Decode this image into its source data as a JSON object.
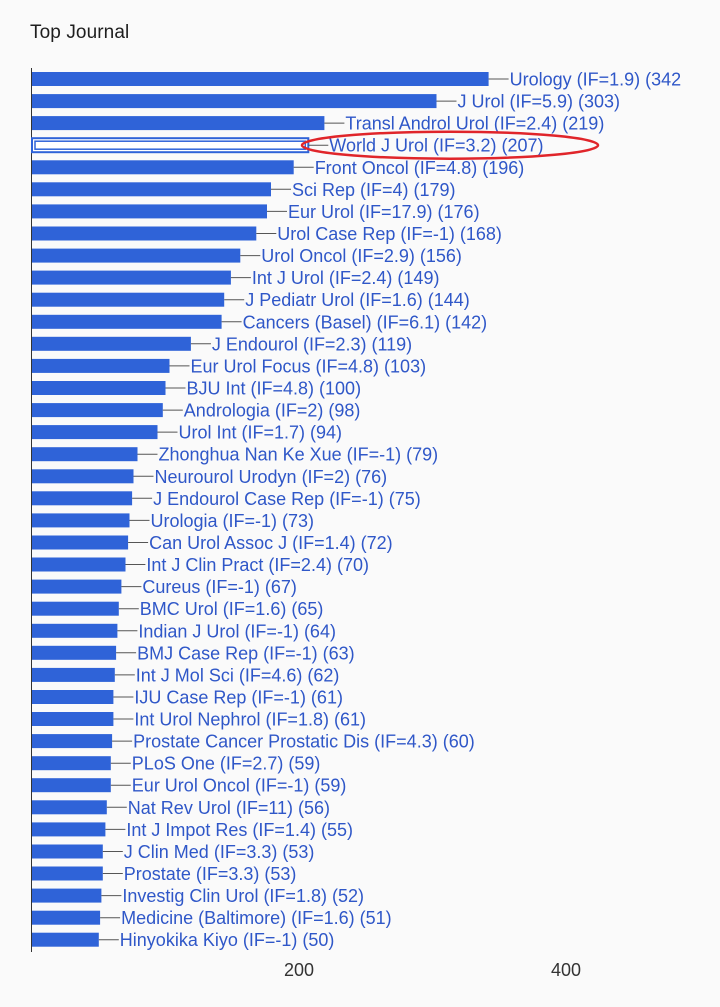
{
  "title": "Top Journal",
  "chart_data": {
    "type": "bar",
    "orientation": "horizontal",
    "title": "Top Journal",
    "xlabel": "",
    "ylabel": "",
    "xlim": [
      0,
      500
    ],
    "x_ticks": [
      200,
      400
    ],
    "grid": false,
    "bar_color": "#2f63d8",
    "label_color": "#2f57c8",
    "highlight_color": "#e0252a",
    "highlighted_category": "World J Urol (IF=3.2) (207)",
    "categories": [
      "Urology (IF=1.9) (342",
      "J Urol (IF=5.9) (303)",
      "Transl Androl Urol (IF=2.4) (219)",
      "World J Urol (IF=3.2) (207)",
      "Front Oncol (IF=4.8) (196)",
      "Sci Rep (IF=4) (179)",
      "Eur Urol (IF=17.9) (176)",
      "Urol Case Rep (IF=-1) (168)",
      "Urol Oncol (IF=2.9) (156)",
      "Int J Urol (IF=2.4) (149)",
      "J Pediatr Urol (IF=1.6) (144)",
      "Cancers (Basel) (IF=6.1) (142)",
      "J Endourol (IF=2.3) (119)",
      "Eur Urol Focus (IF=4.8) (103)",
      "BJU Int (IF=4.8) (100)",
      "Andrologia (IF=2) (98)",
      "Urol Int (IF=1.7) (94)",
      "Zhonghua Nan Ke Xue (IF=-1) (79)",
      "Neurourol Urodyn (IF=2) (76)",
      "J Endourol Case Rep (IF=-1) (75)",
      "Urologia (IF=-1) (73)",
      "Can Urol Assoc J (IF=1.4) (72)",
      "Int J Clin Pract (IF=2.4) (70)",
      "Cureus (IF=-1) (67)",
      "BMC Urol (IF=1.6) (65)",
      "Indian J Urol (IF=-1) (64)",
      "BMJ Case Rep (IF=-1) (63)",
      "Int J Mol Sci (IF=4.6) (62)",
      "IJU Case Rep (IF=-1) (61)",
      "Int Urol Nephrol (IF=1.8) (61)",
      "Prostate Cancer Prostatic Dis (IF=4.3) (60)",
      "PLoS One (IF=2.7) (59)",
      "Eur Urol Oncol (IF=-1) (59)",
      "Nat Rev Urol (IF=11) (56)",
      "Int J Impot Res (IF=1.4) (55)",
      "J Clin Med (IF=3.3) (53)",
      "Prostate (IF=3.3) (53)",
      "Investig Clin Urol (IF=1.8) (52)",
      "Medicine (Baltimore) (IF=1.6) (51)",
      "Hinyokika Kiyo (IF=-1) (50)"
    ],
    "values": [
      342,
      303,
      219,
      207,
      196,
      179,
      176,
      168,
      156,
      149,
      144,
      142,
      119,
      103,
      100,
      98,
      94,
      79,
      76,
      75,
      73,
      72,
      70,
      67,
      65,
      64,
      63,
      62,
      61,
      61,
      60,
      59,
      59,
      56,
      55,
      53,
      53,
      52,
      51,
      50
    ]
  }
}
